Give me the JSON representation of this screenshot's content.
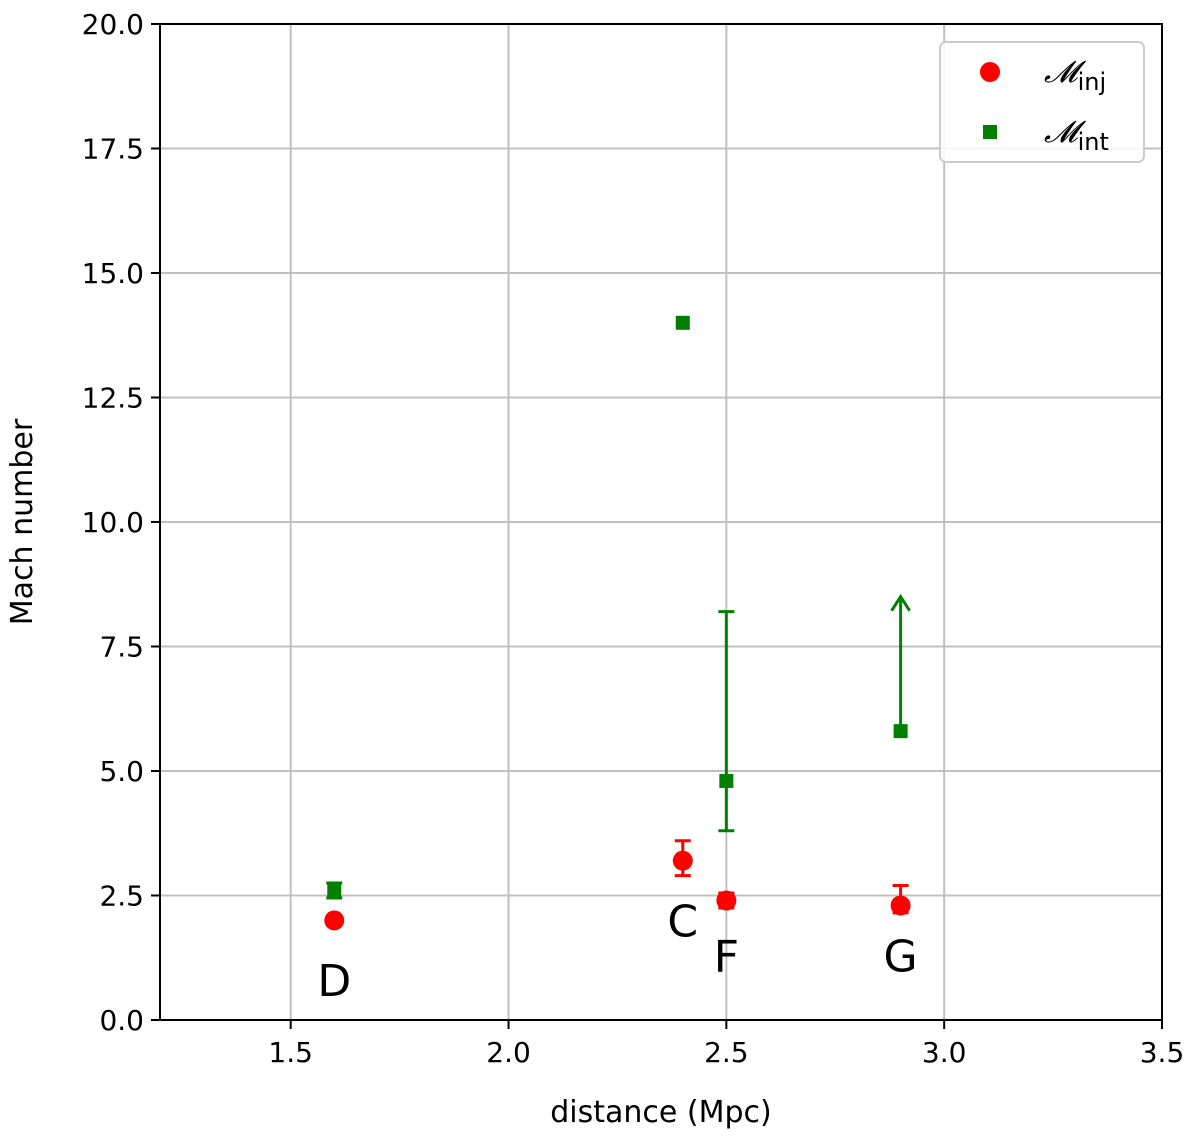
{
  "chart_data": {
    "type": "scatter",
    "xlabel": "distance (Mpc)",
    "ylabel": "Mach number",
    "xlim": [
      1.2,
      3.5
    ],
    "ylim": [
      0.0,
      20.0
    ],
    "x_ticks": [
      "1.5",
      "2.0",
      "2.5",
      "3.0",
      "3.5"
    ],
    "x_tick_values": [
      1.5,
      2.0,
      2.5,
      3.0,
      3.5
    ],
    "y_ticks": [
      "0.0",
      "2.5",
      "5.0",
      "7.5",
      "10.0",
      "12.5",
      "15.0",
      "17.5",
      "20.0"
    ],
    "y_tick_values": [
      0,
      2.5,
      5.0,
      7.5,
      10.0,
      12.5,
      15.0,
      17.5,
      20.0
    ],
    "grid": true,
    "legend_position": "top-right",
    "series": [
      {
        "name": "𝓜",
        "subscript": "inj",
        "marker": "circle",
        "color": "#ff0000",
        "points": [
          {
            "x": 1.6,
            "y": 2.0,
            "err_low": 0.0,
            "err_high": 0.0
          },
          {
            "x": 2.4,
            "y": 3.2,
            "err_low": 0.3,
            "err_high": 0.4
          },
          {
            "x": 2.5,
            "y": 2.4,
            "err_low": 0.15,
            "err_high": 0.15
          },
          {
            "x": 2.9,
            "y": 2.3,
            "err_low": 0.15,
            "err_high": 0.4
          }
        ]
      },
      {
        "name": "𝓜",
        "subscript": "int",
        "marker": "square",
        "color": "#008000",
        "points": [
          {
            "x": 1.6,
            "y": 2.6,
            "err_low": 0.15,
            "err_high": 0.15
          },
          {
            "x": 2.4,
            "y": 14.0,
            "err_low": 0.0,
            "err_high": 0.0
          },
          {
            "x": 2.5,
            "y": 4.8,
            "err_low": 1.0,
            "err_high": 3.4
          },
          {
            "x": 2.9,
            "y": 5.8,
            "err_low": 0.0,
            "err_high": 0.0,
            "lower_limit_arrow_to": 8.5
          }
        ]
      }
    ],
    "annotations": [
      {
        "text": "D",
        "x": 1.6,
        "y": 0.8
      },
      {
        "text": "C",
        "x": 2.4,
        "y": 2.0
      },
      {
        "text": "F",
        "x": 2.5,
        "y": 1.3
      },
      {
        "text": "G",
        "x": 2.9,
        "y": 1.3
      }
    ]
  }
}
